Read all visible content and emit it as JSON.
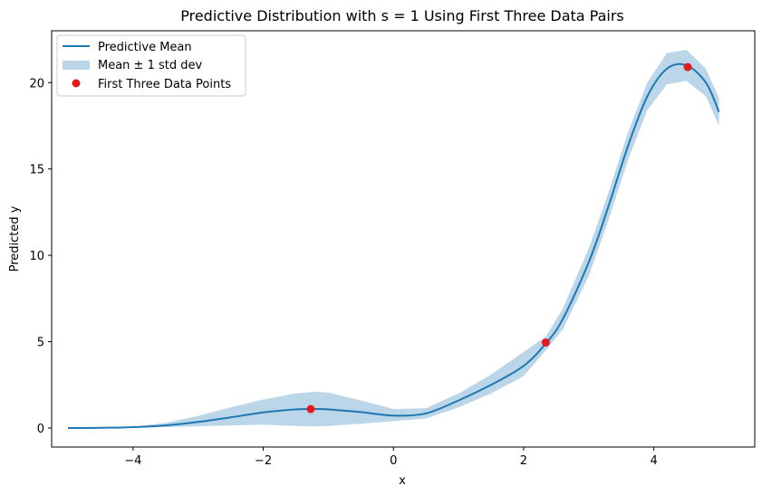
{
  "chart_data": {
    "type": "line",
    "title": "Predictive Distribution with s = 1 Using First Three Data Pairs",
    "xlabel": "x",
    "ylabel": "Predicted y",
    "xlim": [
      -5.25,
      5.55
    ],
    "ylim": [
      -1.1,
      23.0
    ],
    "xticks": [
      -4,
      -2,
      0,
      2,
      4
    ],
    "xtick_labels": [
      "−4",
      "−2",
      "0",
      "2",
      "4"
    ],
    "yticks": [
      0,
      5,
      10,
      15,
      20
    ],
    "ytick_labels": [
      "0",
      "5",
      "10",
      "15",
      "20"
    ],
    "grid": false,
    "legend_position": "upper-left",
    "colors": {
      "mean_line": "#1f77b4",
      "band": "#1f77b4",
      "band_alpha": 0.3,
      "points": "#e31a1c"
    },
    "series": [
      {
        "name": "Predictive Mean",
        "kind": "line",
        "x": [
          -5.0,
          -4.5,
          -4.0,
          -3.5,
          -3.0,
          -2.5,
          -2.0,
          -1.5,
          -1.2,
          -1.0,
          -0.5,
          0.0,
          0.5,
          1.0,
          1.5,
          2.0,
          2.34,
          2.6,
          3.0,
          3.3,
          3.6,
          3.9,
          4.2,
          4.5,
          4.8,
          5.0
        ],
        "y": [
          0.0,
          0.01,
          0.05,
          0.15,
          0.35,
          0.62,
          0.9,
          1.08,
          1.1,
          1.08,
          0.92,
          0.72,
          0.85,
          1.6,
          2.5,
          3.6,
          4.9,
          6.3,
          9.6,
          12.8,
          16.3,
          19.2,
          20.8,
          21.0,
          20.0,
          18.3
        ]
      },
      {
        "name": "Mean ± 1 std dev",
        "kind": "band",
        "x": [
          -5.0,
          -4.5,
          -4.0,
          -3.5,
          -3.0,
          -2.5,
          -2.0,
          -1.5,
          -1.2,
          -1.0,
          -0.5,
          0.0,
          0.5,
          1.0,
          1.5,
          2.0,
          2.34,
          2.6,
          3.0,
          3.3,
          3.6,
          3.9,
          4.2,
          4.5,
          4.8,
          5.0
        ],
        "lower": [
          0.0,
          0.0,
          0.02,
          0.05,
          0.1,
          0.15,
          0.2,
          0.12,
          0.1,
          0.12,
          0.25,
          0.4,
          0.55,
          1.2,
          2.0,
          3.0,
          4.5,
          5.7,
          8.8,
          12.0,
          15.5,
          18.4,
          19.9,
          20.1,
          19.2,
          17.5
        ],
        "upper": [
          0.0,
          0.02,
          0.08,
          0.3,
          0.7,
          1.2,
          1.65,
          2.0,
          2.1,
          2.05,
          1.6,
          1.1,
          1.15,
          2.0,
          3.1,
          4.4,
          5.3,
          6.9,
          10.4,
          13.6,
          17.1,
          20.0,
          21.7,
          21.9,
          20.8,
          19.1
        ]
      },
      {
        "name": "First Three Data Points",
        "kind": "scatter",
        "points": [
          {
            "x": -1.27,
            "y": 1.1
          },
          {
            "x": 2.34,
            "y": 4.95
          },
          {
            "x": 4.52,
            "y": 20.9
          }
        ]
      }
    ]
  }
}
